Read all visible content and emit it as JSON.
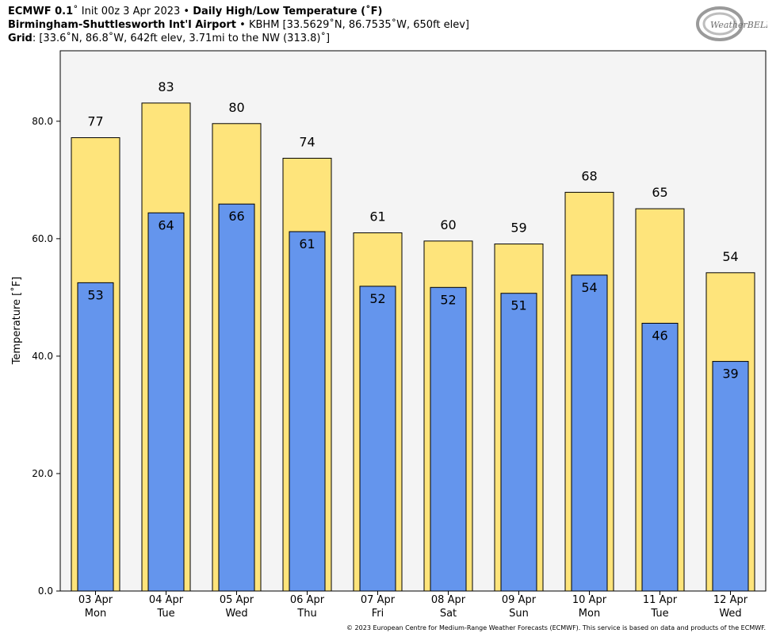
{
  "header": {
    "line1_model": "ECMWF 0.1",
    "line1_init": "˚ Init 00z 3 Apr 2023 •",
    "line1_title": "Daily High/Low Temperature (˚F)",
    "line2_station": "Birmingham-Shuttlesworth Int'l Airport",
    "line2_info": "• KBHM [33.5629˚N, 86.7535˚W, 650ft elev]",
    "line3_label": "Grid",
    "line3_info": ": [33.6˚N, 86.8˚W, 642ft elev, 3.71mi to the NW (313.8)˚]"
  },
  "logo": {
    "text": "WeatherBELL",
    "icon": "weatherbell-logo"
  },
  "credit": "© 2023 European Centre for Medium-Range Weather Forecasts (ECMWF). This service is based on data and products of the ECMWF.",
  "colors": {
    "high": "#fee47b",
    "low": "#6495ed",
    "plot_bg": "#f4f4f4"
  },
  "chart_data": {
    "type": "bar",
    "title": "Daily High/Low Temperature (˚F)",
    "ylabel": "Temperature [˚F]",
    "xlabel": "",
    "ylim": [
      0,
      92
    ],
    "yticks": [
      "0.0",
      "20.0",
      "40.0",
      "60.0",
      "80.0"
    ],
    "ytick_values": [
      0,
      20,
      40,
      60,
      80
    ],
    "grid": false,
    "categories": [
      {
        "date": "03 Apr",
        "day": "Mon"
      },
      {
        "date": "04 Apr",
        "day": "Tue"
      },
      {
        "date": "05 Apr",
        "day": "Wed"
      },
      {
        "date": "06 Apr",
        "day": "Thu"
      },
      {
        "date": "07 Apr",
        "day": "Fri"
      },
      {
        "date": "08 Apr",
        "day": "Sat"
      },
      {
        "date": "09 Apr",
        "day": "Sun"
      },
      {
        "date": "10 Apr",
        "day": "Mon"
      },
      {
        "date": "11 Apr",
        "day": "Tue"
      },
      {
        "date": "12 Apr",
        "day": "Wed"
      }
    ],
    "series": [
      {
        "values": [
          77.2,
          83.1,
          79.6,
          73.7,
          61.0,
          59.6,
          59.1,
          67.9,
          65.1,
          54.2
        ],
        "labels": [
          "77",
          "83",
          "80",
          "74",
          "61",
          "60",
          "59",
          "68",
          "65",
          "54"
        ]
      },
      {
        "values": [
          52.5,
          64.4,
          65.9,
          61.2,
          51.9,
          51.7,
          50.7,
          53.8,
          45.6,
          39.1
        ],
        "labels": [
          "53",
          "64",
          "66",
          "61",
          "52",
          "52",
          "51",
          "54",
          "46",
          "39"
        ]
      }
    ]
  }
}
